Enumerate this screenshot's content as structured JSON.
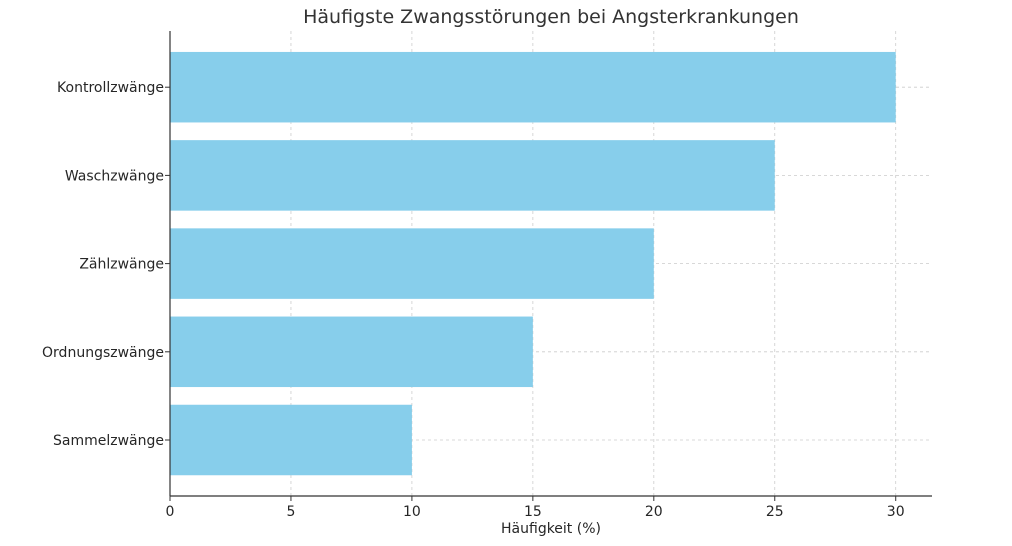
{
  "chart_data": {
    "type": "bar",
    "orientation": "horizontal",
    "title": "Häufigste Zwangsstörungen bei Angsterkrankungen",
    "xlabel": "Häufigkeit (%)",
    "ylabel": "",
    "categories": [
      "Kontrollzwänge",
      "Waschzwänge",
      "Zählzwänge",
      "Ordnungszwänge",
      "Sammelzwänge"
    ],
    "values": [
      30,
      25,
      20,
      15,
      10
    ],
    "xlim": [
      0,
      31.5
    ],
    "xticks": [
      0,
      5,
      10,
      15,
      20,
      25,
      30
    ],
    "bar_color": "#87ceeb",
    "grid": true
  }
}
